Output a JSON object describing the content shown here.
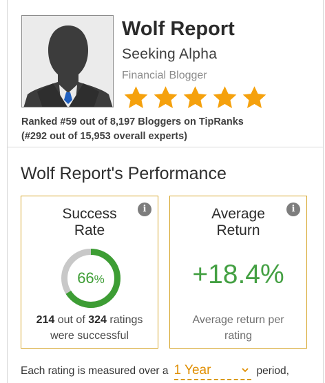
{
  "profile": {
    "name": "Wolf Report",
    "firm": "Seeking Alpha",
    "role": "Financial Blogger",
    "star_rating": 5,
    "star_max": 5,
    "rank_line1": "Ranked #59 out of 8,197 Bloggers on TipRanks",
    "rank_line2": "(#292 out of 15,953 overall experts)"
  },
  "performance": {
    "title": "Wolf Report's Performance",
    "success": {
      "title_line1": "Success",
      "title_line2": "Rate",
      "value": "66",
      "unit": "%",
      "fraction": 0.66,
      "successful": "214",
      "middle": " out of ",
      "total": "324",
      "suffix": " ratings",
      "line2": "were successful"
    },
    "average": {
      "title_line1": "Average",
      "title_line2": "Return",
      "value": "+18.4%",
      "note_line1": "Average return per",
      "note_line2": "rating"
    }
  },
  "footer": {
    "prefix": "Each rating is measured over a",
    "period": "1 Year",
    "suffix": "period,"
  },
  "colors": {
    "star": "#f5a10d",
    "success_green": "#3d9d34",
    "ring_track": "#c8c8c8",
    "box_border": "#d6a52a",
    "select_accent": "#e08e00"
  }
}
